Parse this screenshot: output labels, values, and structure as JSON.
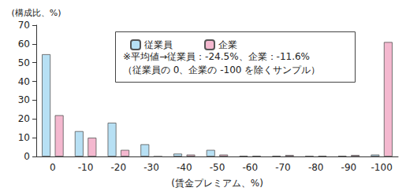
{
  "chart_data": {
    "type": "bar",
    "ylabel": "(構成比、%)",
    "xlabel": "(賃金プレミアム、%)",
    "categories": [
      "0",
      "-10",
      "-20",
      "-30",
      "-40",
      "-50",
      "-60",
      "-70",
      "-80",
      "-90",
      "-100"
    ],
    "series": [
      {
        "name": "従業員",
        "color": "#b7e0f4",
        "values": [
          54.5,
          13.5,
          18,
          6.5,
          1.5,
          3.5,
          0.3,
          0.3,
          0.2,
          0.3,
          1
        ]
      },
      {
        "name": "企業",
        "color": "#f4b8cf",
        "values": [
          22,
          10,
          3.5,
          0,
          1,
          1,
          0.3,
          0.8,
          0.3,
          0.8,
          61
        ]
      }
    ],
    "ylim": [
      0,
      70
    ],
    "yticks": [
      0,
      10,
      20,
      30,
      40,
      50,
      60,
      70
    ],
    "grid": false,
    "legend": "top",
    "annotations": [
      "※平均値→従業員：-24.5%、企業：-11.6%",
      "（従業員の 0、企業の -100 を除くサンプル）"
    ]
  }
}
